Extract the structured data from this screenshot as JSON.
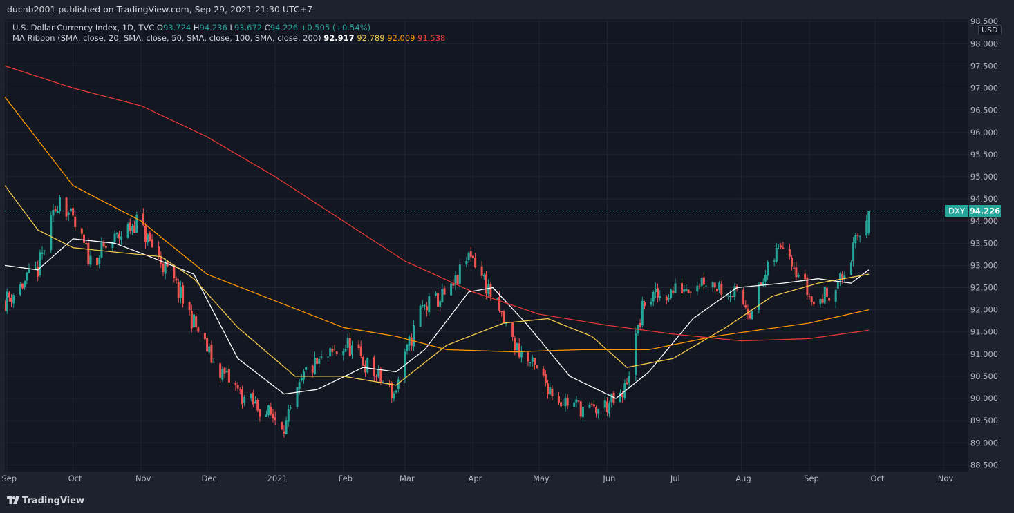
{
  "header": {
    "publisher_text": "ducnb2001 published on TradingView.com, Sep 29, 2021 21:30 UTC+7"
  },
  "legend": {
    "symbol_text": "U.S. Dollar Currency Index, 1D, TVC",
    "open_label": "O",
    "open_value": "93.724",
    "high_label": "H",
    "high_value": "94.236",
    "low_label": "L",
    "low_value": "93.672",
    "close_label": "C",
    "close_value": "94.226",
    "change_text": "+0.505 (+0.54%)",
    "ma_text": "MA Ribbon (SMA, close, 20, SMA, close, 50, SMA, close, 100, SMA, close, 200)",
    "ma_values": [
      "92.917",
      "92.789",
      "92.009",
      "91.538"
    ]
  },
  "currency_button": "USD",
  "price_tag": {
    "symbol": "DXY",
    "value": "94.226"
  },
  "footer": {
    "brand": "TradingView"
  },
  "colors": {
    "background": "#131722",
    "outer": "#1e222d",
    "up": "#26a69a",
    "down": "#ef5350",
    "ma20": "#ffffff",
    "ma50": "#f2c94c",
    "ma100": "#ff9800",
    "ma200": "#e53935"
  },
  "chart_data": {
    "type": "candlestick",
    "title": "U.S. Dollar Currency Index, 1D, TVC",
    "symbol": "DXY",
    "last_price": 94.226,
    "y_ticks": [
      98.5,
      98.0,
      97.5,
      97.0,
      96.5,
      96.0,
      95.5,
      95.0,
      94.5,
      94.0,
      93.5,
      93.0,
      92.5,
      92.0,
      91.5,
      91.0,
      90.5,
      90.0,
      89.5,
      89.0,
      88.5
    ],
    "y_tick_labels": [
      "98.500",
      "98.000",
      "97.500",
      "97.000",
      "96.500",
      "96.000",
      "95.500",
      "95.000",
      "94.500",
      "94.000",
      "93.500",
      "93.000",
      "92.500",
      "92.000",
      "91.500",
      "91.000",
      "90.500",
      "90.000",
      "89.500",
      "89.000",
      "88.500"
    ],
    "ylim": [
      88.35,
      98.55
    ],
    "x_labels": [
      "Sep",
      "Oct",
      "Nov",
      "Dec",
      "2021",
      "Feb",
      "Mar",
      "Apr",
      "May",
      "Jun",
      "Jul",
      "Aug",
      "Sep",
      "Oct",
      "Nov"
    ],
    "x_label_dates": [
      "2020-09-01",
      "2020-10-01",
      "2020-11-01",
      "2020-12-01",
      "2021-01-01",
      "2021-02-01",
      "2021-03-01",
      "2021-04-01",
      "2021-05-01",
      "2021-06-01",
      "2021-07-01",
      "2021-08-01",
      "2021-09-01",
      "2021-10-01",
      "2021-11-01"
    ],
    "xlim": [
      "2020-08-31",
      "2021-11-12"
    ],
    "close_series": {
      "dates": [
        "2020-08-31",
        "2020-09-15",
        "2020-09-25",
        "2020-10-09",
        "2020-10-30",
        "2020-11-16",
        "2020-12-04",
        "2020-12-18",
        "2021-01-06",
        "2021-01-15",
        "2021-02-03",
        "2021-02-24",
        "2021-03-08",
        "2021-03-22",
        "2021-03-31",
        "2021-04-20",
        "2021-05-10",
        "2021-05-25",
        "2021-06-08",
        "2021-06-18",
        "2021-06-30",
        "2021-07-15",
        "2021-07-28",
        "2021-08-05",
        "2021-08-20",
        "2021-09-03",
        "2021-09-16",
        "2021-09-28"
      ],
      "close": [
        92.2,
        92.9,
        94.6,
        93.1,
        94.0,
        92.6,
        90.8,
        90.0,
        89.4,
        90.6,
        91.2,
        90.1,
        92.0,
        92.4,
        93.3,
        91.2,
        90.0,
        89.7,
        90.0,
        92.2,
        92.4,
        92.7,
        92.4,
        92.0,
        93.6,
        92.1,
        92.7,
        94.226
      ]
    },
    "series": [
      {
        "name": "SMA 20",
        "last_value": 92.917,
        "dates": [
          "2020-08-31",
          "2020-09-15",
          "2020-10-01",
          "2020-10-20",
          "2020-11-05",
          "2020-11-25",
          "2020-12-15",
          "2021-01-05",
          "2021-01-20",
          "2021-02-10",
          "2021-02-25",
          "2021-03-10",
          "2021-03-30",
          "2021-04-10",
          "2021-04-25",
          "2021-05-15",
          "2021-06-05",
          "2021-06-20",
          "2021-07-10",
          "2021-07-30",
          "2021-08-20",
          "2021-09-05",
          "2021-09-20",
          "2021-09-28"
        ],
        "values": [
          93.0,
          92.9,
          93.6,
          93.5,
          93.2,
          92.8,
          90.9,
          90.1,
          90.2,
          90.7,
          90.6,
          91.1,
          92.4,
          92.5,
          91.7,
          90.5,
          90.0,
          90.6,
          91.8,
          92.5,
          92.6,
          92.7,
          92.6,
          92.9
        ]
      },
      {
        "name": "SMA 50",
        "last_value": 92.789,
        "dates": [
          "2020-08-31",
          "2020-09-15",
          "2020-10-01",
          "2020-10-20",
          "2020-11-10",
          "2020-11-25",
          "2020-12-15",
          "2021-01-10",
          "2021-02-01",
          "2021-02-25",
          "2021-03-20",
          "2021-04-15",
          "2021-05-05",
          "2021-05-25",
          "2021-06-10",
          "2021-07-01",
          "2021-07-25",
          "2021-08-15",
          "2021-09-05",
          "2021-09-28"
        ],
        "values": [
          94.8,
          93.8,
          93.4,
          93.3,
          93.2,
          92.7,
          91.6,
          90.5,
          90.5,
          90.3,
          91.2,
          91.7,
          91.8,
          91.4,
          90.7,
          90.9,
          91.6,
          92.3,
          92.6,
          92.8
        ]
      },
      {
        "name": "SMA 100",
        "last_value": 92.009,
        "dates": [
          "2020-08-31",
          "2020-10-01",
          "2020-11-01",
          "2020-12-01",
          "2021-01-01",
          "2021-02-01",
          "2021-02-25",
          "2021-03-20",
          "2021-04-20",
          "2021-05-20",
          "2021-06-20",
          "2021-07-20",
          "2021-08-10",
          "2021-09-01",
          "2021-09-28"
        ],
        "values": [
          96.8,
          94.8,
          94.0,
          92.8,
          92.2,
          91.6,
          91.4,
          91.1,
          91.05,
          91.1,
          91.1,
          91.4,
          91.55,
          91.7,
          92.0
        ]
      },
      {
        "name": "SMA 200",
        "last_value": 91.538,
        "dates": [
          "2020-08-31",
          "2020-10-01",
          "2020-11-01",
          "2020-12-01",
          "2021-01-01",
          "2021-02-01",
          "2021-03-01",
          "2021-04-01",
          "2021-05-01",
          "2021-06-01",
          "2021-07-01",
          "2021-08-01",
          "2021-09-01",
          "2021-09-28"
        ],
        "values": [
          97.5,
          97.0,
          96.6,
          95.9,
          95.0,
          94.0,
          93.1,
          92.4,
          91.9,
          91.65,
          91.45,
          91.3,
          91.35,
          91.538
        ]
      }
    ],
    "grid": true
  }
}
